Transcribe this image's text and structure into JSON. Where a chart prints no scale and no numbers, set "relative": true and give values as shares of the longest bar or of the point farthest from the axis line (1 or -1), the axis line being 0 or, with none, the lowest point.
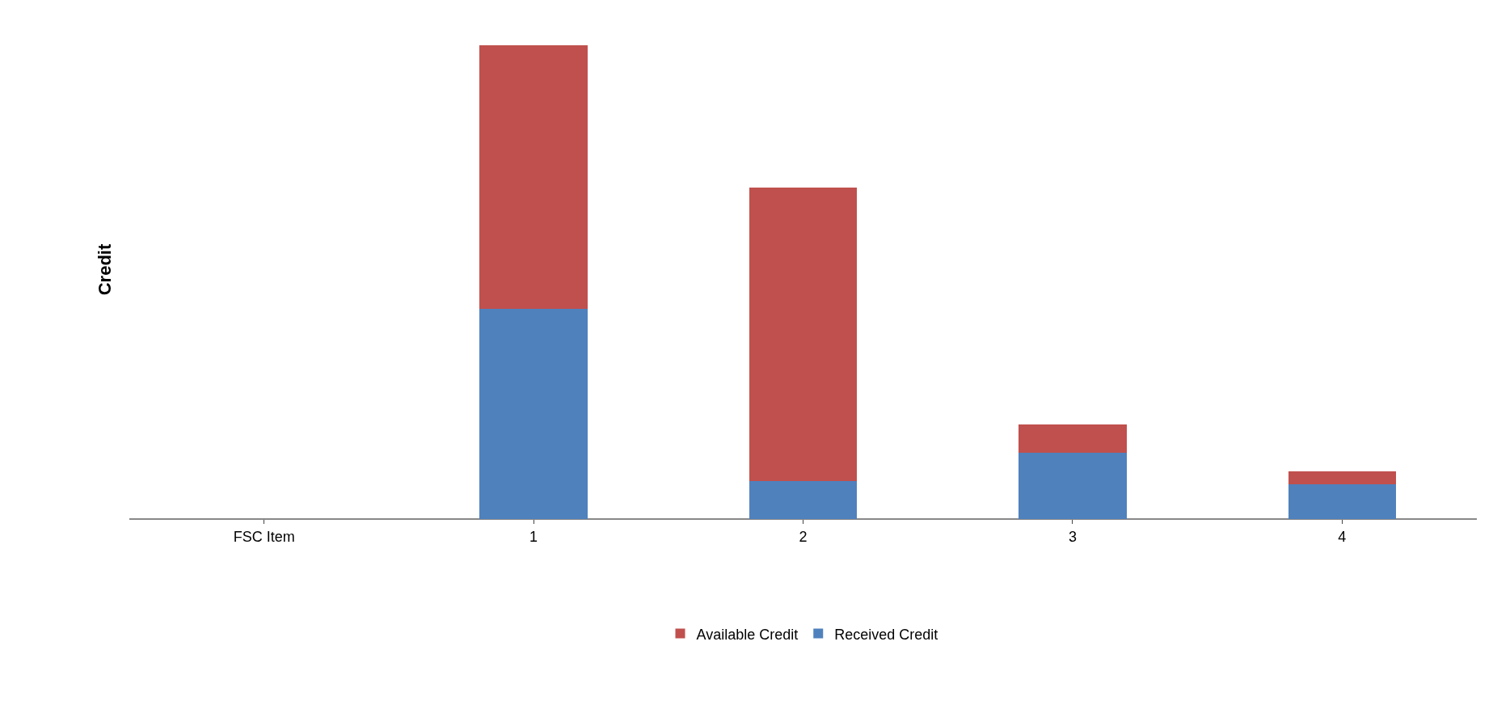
{
  "chart_data": {
    "type": "bar",
    "stacked": true,
    "relative": true,
    "ylabel": "Credit",
    "categories": [
      "FSC Item",
      "1",
      "2",
      "3",
      "4"
    ],
    "series": [
      {
        "name": "Received Credit",
        "color": "#4f81bd",
        "values": [
          null,
          0.444,
          0.08,
          0.14,
          0.074
        ]
      },
      {
        "name": "Available Credit",
        "color": "#c0504d",
        "values": [
          null,
          0.556,
          0.62,
          0.06,
          0.026
        ]
      }
    ],
    "legend": "bottom"
  }
}
